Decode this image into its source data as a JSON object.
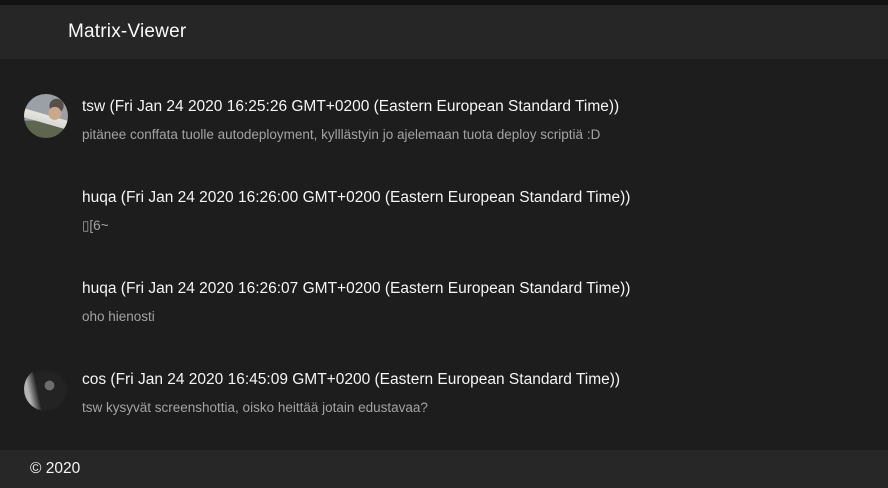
{
  "header": {
    "title": "Matrix-Viewer"
  },
  "messages": [
    {
      "author_line": "tsw (Fri Jan 24 2020 16:25:26 GMT+0200 (Eastern European Standard Time))",
      "body": "pitänee conffata tuolle autodeployment, kylllästyin jo ajelemaan tuota deploy scriptiä :D",
      "avatar": "tsw"
    },
    {
      "author_line": "huqa (Fri Jan 24 2020 16:26:00 GMT+0200 (Eastern European Standard Time))",
      "body": "▯[6~",
      "avatar": null
    },
    {
      "author_line": "huqa (Fri Jan 24 2020 16:26:07 GMT+0200 (Eastern European Standard Time))",
      "body": "oho hienosti",
      "avatar": null
    },
    {
      "author_line": "cos (Fri Jan 24 2020 16:45:09 GMT+0200 (Eastern European Standard Time))",
      "body": "tsw kysyvät screenshottia, oisko heittää jotain edustavaa?",
      "avatar": "cos"
    }
  ],
  "footer": {
    "copyright": "© 2020"
  },
  "colors": {
    "top_strip_bg": "#121212",
    "header_bg": "#262626",
    "main_bg": "#1d1d1d",
    "footer_bg": "#272727",
    "author_text": "#f5f5f5",
    "body_text": "#a3a3a3"
  }
}
